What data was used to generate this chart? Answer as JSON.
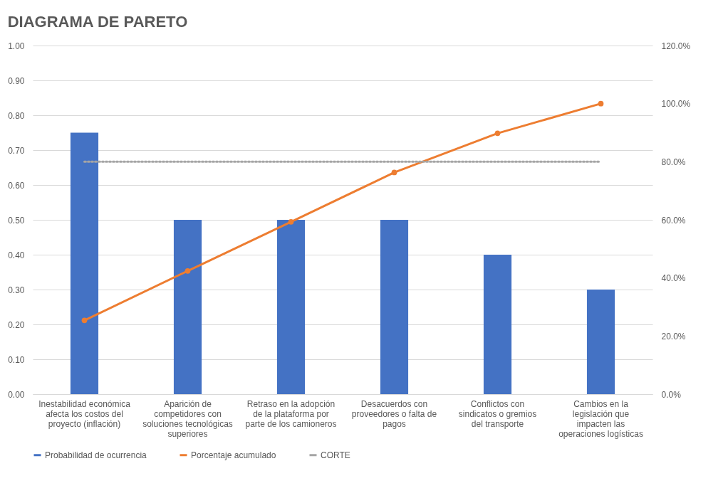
{
  "chart_data": {
    "type": "bar",
    "title": "DIAGRAMA DE PARETO",
    "categories": [
      "Inestabilidad económica afecta los costos del proyecto (inflación)",
      "Aparición de competidores con soluciones tecnológicas superiores",
      "Retraso en la adopción de la plataforma por parte de los camioneros",
      "Desacuerdos con proveedores o falta de pagos",
      "Conflictos con sindicatos o gremios del transporte",
      "Cambios en la legislación que impacten las operaciones logísticas"
    ],
    "series": [
      {
        "name": "Probabilidad de ocurrencia",
        "color": "#4472c4",
        "values": [
          0.75,
          0.5,
          0.5,
          0.5,
          0.4,
          0.3
        ]
      },
      {
        "name": "Porcentaje acumulado",
        "type": "line",
        "axis": "y2",
        "color": "#ed7d31",
        "marker": "circle",
        "line_style": "solid",
        "values": [
          25.4,
          42.4,
          59.3,
          76.3,
          89.8,
          100.0
        ]
      },
      {
        "name": "CORTE",
        "type": "line",
        "axis": "y2",
        "color": "#a5a5a5",
        "marker": "none",
        "line_style": "dotted",
        "values": [
          80,
          80,
          80,
          80,
          80,
          80
        ]
      }
    ],
    "ylim": [
      0,
      1
    ],
    "yticks": [
      {
        "value": 0,
        "label": "0.00"
      },
      {
        "value": 0.1,
        "label": "0.10"
      },
      {
        "value": 0.2,
        "label": "0.20"
      },
      {
        "value": 0.3,
        "label": "0.30"
      },
      {
        "value": 0.4,
        "label": "0.40"
      },
      {
        "value": 0.5,
        "label": "0.50"
      },
      {
        "value": 0.6,
        "label": "0.60"
      },
      {
        "value": 0.7,
        "label": "0.70"
      },
      {
        "value": 0.8,
        "label": "0.80"
      },
      {
        "value": 0.9,
        "label": "0.90"
      },
      {
        "value": 1,
        "label": "1.00"
      }
    ],
    "y2lim": [
      0,
      120
    ],
    "y2ticks": [
      {
        "value": 0,
        "label": "0.0%"
      },
      {
        "value": 20,
        "label": "20.0%"
      },
      {
        "value": 40,
        "label": "40.0%"
      },
      {
        "value": 60,
        "label": "60.0%"
      },
      {
        "value": 80,
        "label": "80.0%"
      },
      {
        "value": 100,
        "label": "100.0%"
      },
      {
        "value": 120,
        "label": "120.0%"
      }
    ],
    "grid": "y",
    "legend": "bottom"
  }
}
